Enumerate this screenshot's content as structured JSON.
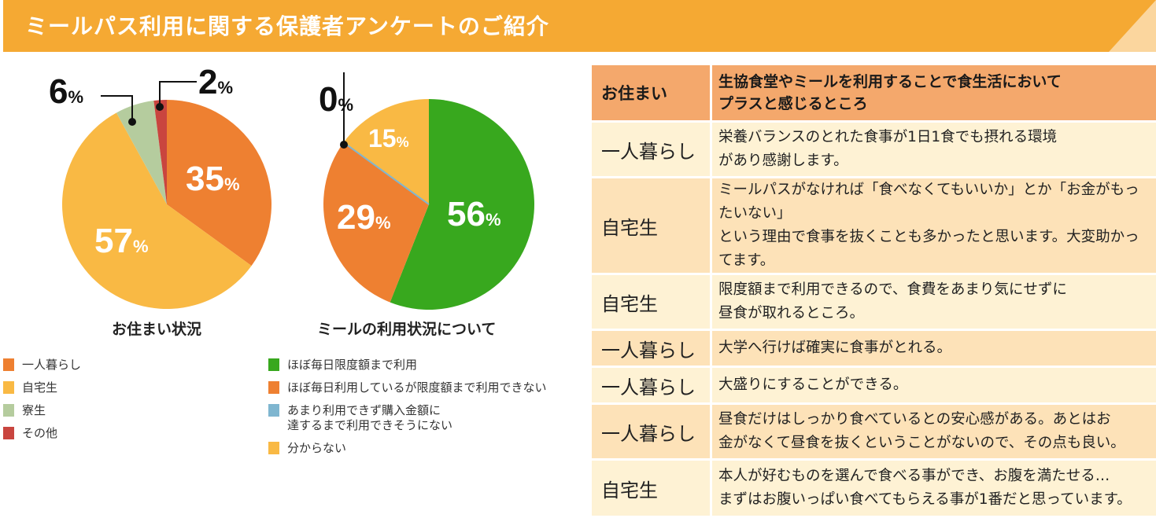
{
  "title": "ミールパス利用に関する保護者アンケートのご紹介",
  "colors": {
    "header": "#f5a933",
    "orange": "#ee8031",
    "yellow": "#f9b944",
    "sage": "#b5cc9e",
    "red": "#c9453f",
    "green": "#38a81e",
    "blue": "#7fb6d0"
  },
  "chart_data": [
    {
      "type": "pie",
      "title": "お住まい状況",
      "categories": [
        "一人暮らし",
        "自宅生",
        "寮生",
        "その他"
      ],
      "values": [
        35,
        57,
        6,
        2
      ],
      "labels": [
        "35",
        "57",
        "6",
        "2"
      ],
      "unit": "%",
      "colors": [
        "#ee8031",
        "#f9b944",
        "#b5cc9e",
        "#c9453f"
      ],
      "start": "top",
      "direction": "clockwise"
    },
    {
      "type": "pie",
      "title": "ミールの利用状況について",
      "categories": [
        "ほぼ毎日限度額まで利用",
        "ほぼ毎日利用しているが限度額まで利用できない",
        "あまり利用できず購入金額に達するまで利用できそうにない",
        "分からない"
      ],
      "values": [
        56,
        29,
        0,
        15
      ],
      "labels": [
        "56",
        "29",
        "0",
        "15"
      ],
      "unit": "%",
      "colors": [
        "#38a81e",
        "#ee8031",
        "#7fb6d0",
        "#f9b944"
      ],
      "start": "top",
      "direction": "clockwise"
    }
  ],
  "legend2_line2": "達するまで利用できそうにない",
  "legend2_line1": "あまり利用できず購入金額に",
  "table": {
    "headers": [
      "お住まい",
      "生協食堂やミールを利用することで食生活において",
      "プラスと感じるところ"
    ],
    "rows": [
      {
        "residence": "一人暮らし",
        "l1": "栄養バランスのとれた食事が1日1食でも摂れる環境",
        "l2": "があり感謝します。"
      },
      {
        "residence": "自宅生",
        "l1": "ミールパスがなければ「食べなくてもいいか」とか「お金がもったいない」",
        "l2": "という理由で食事を抜くことも多かったと思います。大変助かってます。"
      },
      {
        "residence": "自宅生",
        "l1": "限度額まで利用できるので、食費をあまり気にせずに",
        "l2": "昼食が取れるところ。"
      },
      {
        "residence": "一人暮らし",
        "l1": "大学へ行けば確実に食事がとれる。",
        "l2": ""
      },
      {
        "residence": "一人暮らし",
        "l1": "大盛りにすることができる。",
        "l2": ""
      },
      {
        "residence": "一人暮らし",
        "l1": "昼食だけはしっかり食べているとの安心感がある。あとはお",
        "l2": "金がなくて昼食を抜くということがないので、その点も良い。"
      },
      {
        "residence": "自宅生",
        "l1": "本人が好むものを選んで食べる事ができ、お腹を満たせる…",
        "l2": "まずはお腹いっぱい食べてもらえる事が1番だと思っています。"
      }
    ]
  }
}
